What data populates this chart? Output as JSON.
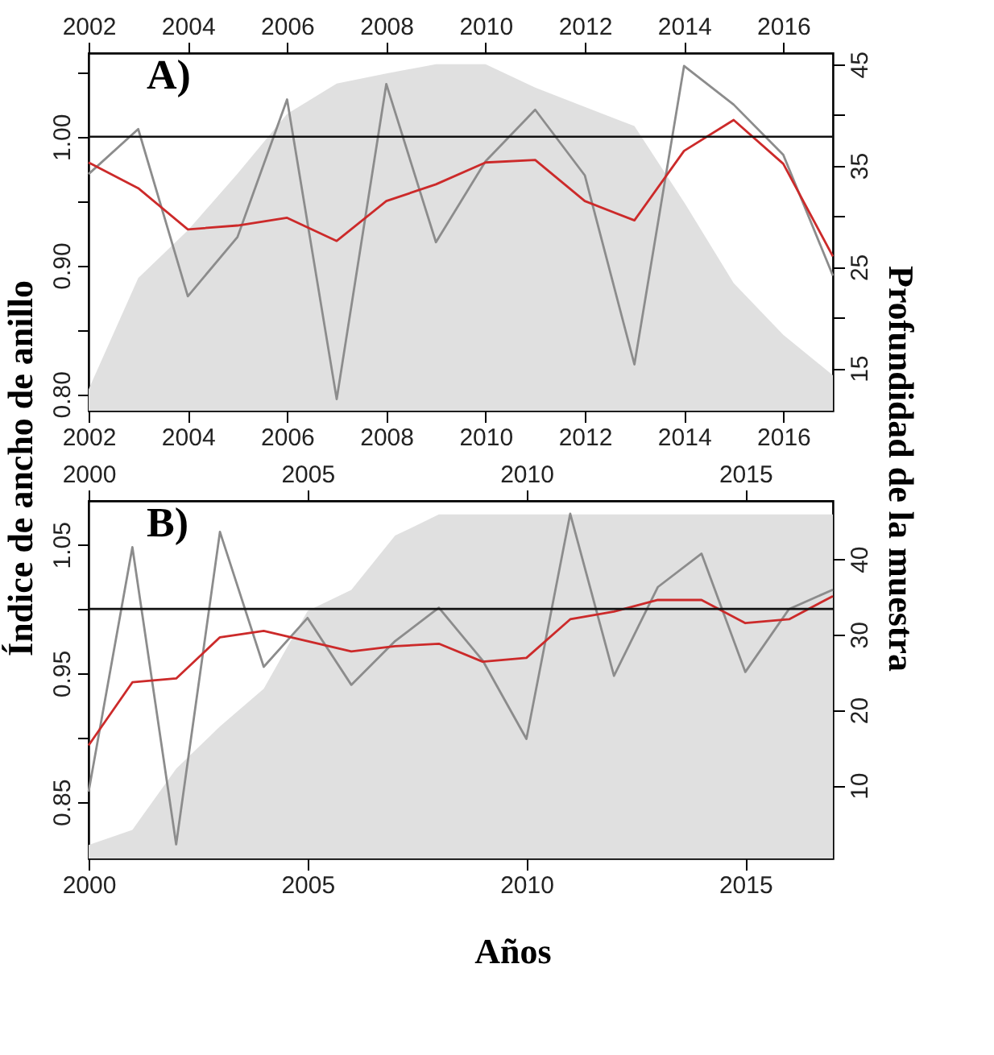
{
  "chart_data": [
    {
      "type": "line",
      "ylabel": "Índice de ancho de anillo",
      "y2label": "Profundidad de la muestra",
      "annotations": [
        "A)"
      ],
      "xlim": [
        2002,
        2017
      ],
      "xticks": [
        2002,
        2004,
        2006,
        2008,
        2010,
        2012,
        2014,
        2016
      ],
      "x2lim": [
        2002,
        2017
      ],
      "x2ticks": [
        2002,
        2004,
        2006,
        2008,
        2010,
        2012,
        2014,
        2016
      ],
      "ylim": [
        0.787,
        1.065
      ],
      "yticks": [
        {
          "value": 0.8,
          "label": "0.80"
        },
        {
          "value": 0.85,
          "label": null
        },
        {
          "value": 0.9,
          "label": "0.90"
        },
        {
          "value": 0.95,
          "label": null
        },
        {
          "value": 1.0,
          "label": "1.00"
        },
        {
          "value": 1.05,
          "label": null
        }
      ],
      "y2lim": [
        10.8,
        46.1
      ],
      "y2ticks": [
        15,
        {
          "value": 20,
          "label": null
        },
        25,
        {
          "value": 30,
          "label": null
        },
        35,
        {
          "value": 40,
          "label": null
        },
        45
      ],
      "x": [
        2002,
        2003,
        2004,
        2005,
        2006,
        2007,
        2008,
        2009,
        2010,
        2011,
        2012,
        2013,
        2014,
        2015,
        2016,
        2017
      ],
      "ref_lines": [
        {
          "axis": "y",
          "value": 1.0
        }
      ],
      "series": [
        {
          "type": "area",
          "axis": "y2",
          "color": "#e0e0e0",
          "values": [
            12.9,
            23.9,
            28.6,
            34.2,
            40.1,
            43.1,
            44.1,
            45,
            45,
            42.7,
            40.8,
            38.9,
            31.4,
            23.4,
            18.3,
            14.3
          ]
        },
        {
          "type": "line",
          "axis": "x2",
          "color": "#8c8c8c",
          "values": [
            0.971,
            1.006,
            0.876,
            0.922,
            1.029,
            0.796,
            1.041,
            0.918,
            0.981,
            1.021,
            0.97,
            0.823,
            1.055,
            1.025,
            0.986,
            0.892
          ]
        },
        {
          "type": "line",
          "color": "#cc2a2a",
          "values": [
            0.98,
            0.96,
            0.928,
            0.931,
            0.937,
            0.919,
            0.95,
            0.963,
            0.98,
            0.982,
            0.95,
            0.935,
            0.989,
            1.013,
            0.979,
            0.907
          ]
        }
      ]
    },
    {
      "type": "line",
      "xlabel": "Años",
      "annotations": [
        "B)"
      ],
      "xlim": [
        2000,
        2017
      ],
      "xticks": [
        2000,
        2005,
        2010,
        2015
      ],
      "x2lim": [
        2000,
        2017
      ],
      "x2ticks": [
        2000,
        2005,
        2010,
        2015
      ],
      "ylim": [
        0.806,
        1.084
      ],
      "yticks": [
        {
          "value": 0.85,
          "label": "0.85"
        },
        {
          "value": 0.9,
          "label": null
        },
        {
          "value": 0.95,
          "label": "0.95"
        },
        {
          "value": 1.0,
          "label": null
        },
        {
          "value": 1.05,
          "label": "1.05"
        }
      ],
      "y2lim": [
        0.3,
        47.7
      ],
      "y2ticks": [
        10,
        20,
        30,
        40
      ],
      "x": [
        2000,
        2001,
        2002,
        2003,
        2004,
        2005,
        2006,
        2007,
        2008,
        2009,
        2010,
        2011,
        2012,
        2013,
        2014,
        2015,
        2016,
        2017
      ],
      "ref_lines": [
        {
          "axis": "y",
          "value": 1.0
        }
      ],
      "series": [
        {
          "type": "area",
          "axis": "y2",
          "color": "#e0e0e0",
          "values": [
            2.1,
            4.1,
            12.2,
            17.8,
            22.8,
            33.1,
            35.9,
            43.1,
            45.9,
            45.9,
            45.9,
            45.9,
            45.9,
            45.9,
            45.9,
            45.9,
            45.9,
            45.9
          ]
        },
        {
          "type": "line",
          "axis": "x2",
          "color": "#8c8c8c",
          "values": [
            0.858,
            1.048,
            0.817,
            1.06,
            0.955,
            0.993,
            0.941,
            0.975,
            1.001,
            0.96,
            0.899,
            1.074,
            0.948,
            1.017,
            1.043,
            0.951,
            1.0,
            1.015
          ]
        },
        {
          "type": "line",
          "color": "#cc2a2a",
          "values": [
            0.894,
            0.943,
            0.946,
            0.978,
            0.983,
            0.975,
            0.967,
            0.971,
            0.973,
            0.959,
            0.962,
            0.992,
            0.998,
            1.007,
            1.007,
            0.989,
            0.992,
            1.01
          ]
        }
      ]
    }
  ]
}
